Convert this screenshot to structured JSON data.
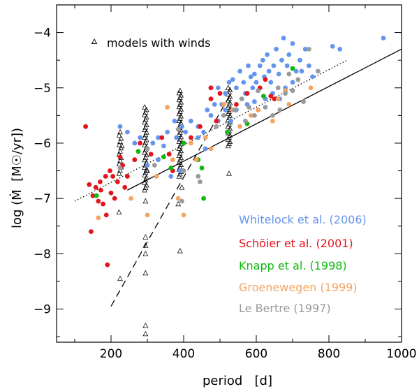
{
  "chart_data": {
    "type": "scatter",
    "title": "",
    "xlabel": "period   [d]",
    "ylabel": "log (Ṁ  [M☉/yr])",
    "xlim": [
      50,
      1000
    ],
    "ylim": [
      -9.6,
      -3.5
    ],
    "x_ticks": [
      "200",
      "400",
      "600",
      "800",
      "1000"
    ],
    "y_ticks": [
      "−4",
      "−5",
      "−6",
      "−7",
      "−8",
      "−9"
    ],
    "grid": false,
    "legend_position": "top-left",
    "model_legend": "models with winds",
    "series": [
      {
        "name": "Whitelock et al. (2006)",
        "color": "#6495ed",
        "points": [
          [
            225,
            -5.7
          ],
          [
            245,
            -5.8
          ],
          [
            265,
            -6.0
          ],
          [
            280,
            -5.9
          ],
          [
            300,
            -6.1
          ],
          [
            315,
            -6.0
          ],
          [
            330,
            -5.9
          ],
          [
            345,
            -6.05
          ],
          [
            355,
            -5.8
          ],
          [
            365,
            -6.6
          ],
          [
            375,
            -5.6
          ],
          [
            380,
            -5.9
          ],
          [
            395,
            -5.7
          ],
          [
            405,
            -5.8
          ],
          [
            420,
            -5.6
          ],
          [
            440,
            -5.7
          ],
          [
            455,
            -5.8
          ],
          [
            465,
            -5.4
          ],
          [
            475,
            -5.5
          ],
          [
            485,
            -5.3
          ],
          [
            495,
            -5.0
          ],
          [
            505,
            -5.3
          ],
          [
            515,
            -5.1
          ],
          [
            525,
            -4.9
          ],
          [
            530,
            -5.6
          ],
          [
            535,
            -4.85
          ],
          [
            545,
            -5.0
          ],
          [
            555,
            -4.7
          ],
          [
            560,
            -5.2
          ],
          [
            565,
            -4.9
          ],
          [
            570,
            -5.1
          ],
          [
            578,
            -4.6
          ],
          [
            585,
            -4.8
          ],
          [
            590,
            -5.0
          ],
          [
            595,
            -4.75
          ],
          [
            600,
            -4.9
          ],
          [
            605,
            -5.05
          ],
          [
            610,
            -4.6
          ],
          [
            618,
            -4.5
          ],
          [
            622,
            -4.8
          ],
          [
            630,
            -4.4
          ],
          [
            635,
            -4.7
          ],
          [
            640,
            -4.9
          ],
          [
            648,
            -4.6
          ],
          [
            655,
            -4.3
          ],
          [
            662,
            -4.75
          ],
          [
            670,
            -4.5
          ],
          [
            675,
            -4.1
          ],
          [
            685,
            -4.6
          ],
          [
            690,
            -4.4
          ],
          [
            700,
            -4.2
          ],
          [
            710,
            -4.7
          ],
          [
            720,
            -4.5
          ],
          [
            735,
            -4.3
          ],
          [
            745,
            -4.6
          ],
          [
            755,
            -4.8
          ],
          [
            810,
            -4.25
          ],
          [
            830,
            -4.3
          ],
          [
            950,
            -4.1
          ],
          [
            475,
            -5.0
          ],
          [
            515,
            -5.4
          ],
          [
            545,
            -5.4
          ],
          [
            595,
            -5.25
          ],
          [
            625,
            -5.2
          ],
          [
            645,
            -5.1
          ],
          [
            680,
            -5.0
          ],
          [
            440,
            -5.9
          ],
          [
            460,
            -6.1
          ],
          [
            390,
            -6.5
          ],
          [
            300,
            -6.4
          ],
          [
            330,
            -6.3
          ],
          [
            575,
            -5.3
          ],
          [
            665,
            -5.2
          ],
          [
            700,
            -4.9
          ],
          [
            725,
            -4.7
          ],
          [
            495,
            -5.6
          ]
        ]
      },
      {
        "name": "Schöier et al. (2001)",
        "color": "#e4141b",
        "points": [
          [
            130,
            -5.7
          ],
          [
            140,
            -6.75
          ],
          [
            145,
            -7.6
          ],
          [
            150,
            -6.95
          ],
          [
            158,
            -6.8
          ],
          [
            165,
            -7.05
          ],
          [
            170,
            -6.7
          ],
          [
            172,
            -6.85
          ],
          [
            178,
            -7.1
          ],
          [
            185,
            -6.6
          ],
          [
            187,
            -7.3
          ],
          [
            190,
            -8.2
          ],
          [
            197,
            -6.5
          ],
          [
            200,
            -6.9
          ],
          [
            205,
            -6.6
          ],
          [
            210,
            -7.0
          ],
          [
            218,
            -6.7
          ],
          [
            225,
            -6.25
          ],
          [
            232,
            -6.4
          ],
          [
            238,
            -6.8
          ],
          [
            245,
            -6.6
          ],
          [
            265,
            -6.3
          ],
          [
            280,
            -6.0
          ],
          [
            310,
            -6.2
          ],
          [
            340,
            -5.9
          ],
          [
            360,
            -6.2
          ],
          [
            370,
            -6.5
          ],
          [
            400,
            -6.0
          ],
          [
            420,
            -5.9
          ],
          [
            445,
            -5.7
          ],
          [
            475,
            -5.2
          ],
          [
            490,
            -5.6
          ],
          [
            500,
            -5.1
          ],
          [
            545,
            -5.3
          ],
          [
            575,
            -5.1
          ],
          [
            610,
            -5.0
          ],
          [
            625,
            -4.85
          ],
          [
            640,
            -5.15
          ],
          [
            650,
            -5.2
          ],
          [
            475,
            -5.0
          ]
        ]
      },
      {
        "name": "Knapp et al. (1998)",
        "color": "#11b80f",
        "points": [
          [
            160,
            -6.95
          ],
          [
            275,
            -6.15
          ],
          [
            345,
            -6.25
          ],
          [
            365,
            -6.45
          ],
          [
            400,
            -6.0
          ],
          [
            440,
            -6.3
          ],
          [
            450,
            -6.45
          ],
          [
            455,
            -7.0
          ],
          [
            520,
            -5.8
          ],
          [
            575,
            -5.65
          ],
          [
            620,
            -5.15
          ],
          [
            700,
            -4.65
          ]
        ]
      },
      {
        "name": "Groenewegen (1999)",
        "color": "#f4a460",
        "points": [
          [
            165,
            -7.35
          ],
          [
            255,
            -7.0
          ],
          [
            300,
            -7.3
          ],
          [
            325,
            -6.6
          ],
          [
            355,
            -5.35
          ],
          [
            370,
            -6.3
          ],
          [
            385,
            -7.0
          ],
          [
            400,
            -7.3
          ],
          [
            420,
            -6.0
          ],
          [
            435,
            -6.3
          ],
          [
            460,
            -5.9
          ],
          [
            475,
            -6.1
          ],
          [
            510,
            -5.3
          ],
          [
            535,
            -5.4
          ],
          [
            555,
            -5.7
          ],
          [
            585,
            -5.5
          ],
          [
            605,
            -5.4
          ],
          [
            645,
            -5.6
          ],
          [
            660,
            -5.2
          ],
          [
            680,
            -5.05
          ],
          [
            690,
            -5.3
          ],
          [
            750,
            -5.0
          ]
        ]
      },
      {
        "name": "Le Bertre (1997)",
        "color": "#9a9a9a",
        "points": [
          [
            225,
            -6.45
          ],
          [
            300,
            -6.1
          ],
          [
            320,
            -6.4
          ],
          [
            385,
            -5.75
          ],
          [
            395,
            -7.05
          ],
          [
            400,
            -6.5
          ],
          [
            440,
            -6.6
          ],
          [
            445,
            -6.7
          ],
          [
            490,
            -5.7
          ],
          [
            510,
            -5.5
          ],
          [
            540,
            -5.4
          ],
          [
            560,
            -5.2
          ],
          [
            580,
            -5.35
          ],
          [
            595,
            -5.5
          ],
          [
            605,
            -5.05
          ],
          [
            625,
            -5.35
          ],
          [
            645,
            -5.5
          ],
          [
            665,
            -5.4
          ],
          [
            680,
            -5.1
          ],
          [
            690,
            -4.75
          ],
          [
            700,
            -5.05
          ],
          [
            715,
            -4.85
          ],
          [
            730,
            -5.25
          ],
          [
            745,
            -4.3
          ],
          [
            770,
            -4.7
          ],
          [
            570,
            -5.6
          ],
          [
            660,
            -5.0
          ]
        ]
      }
    ],
    "model_columns": [
      {
        "period": 225,
        "low": -6.55,
        "high": -5.8,
        "count": 14
      },
      {
        "period": 295,
        "low": -6.85,
        "high": -5.35,
        "count": 34
      },
      {
        "period": 390,
        "low": -6.6,
        "high": -5.05,
        "count": 38
      },
      {
        "period": 525,
        "low": -6.05,
        "high": -5.0,
        "count": 28
      }
    ],
    "model_extra": [
      [
        222,
        -7.25
      ],
      [
        225,
        -8.45
      ],
      [
        295,
        -7.7
      ],
      [
        295,
        -7.85
      ],
      [
        295,
        -8.0
      ],
      [
        295,
        -8.35
      ],
      [
        295,
        -9.3
      ],
      [
        295,
        -9.45
      ],
      [
        295,
        -7.05
      ],
      [
        385,
        -7.1
      ],
      [
        390,
        -7.95
      ],
      [
        395,
        -6.8
      ],
      [
        525,
        -6.55
      ],
      [
        230,
        -6.05
      ],
      [
        300,
        -6.5
      ]
    ],
    "lines": [
      {
        "name": "dotted fit",
        "style": "dotted",
        "points": [
          [
            100,
            -7.05
          ],
          [
            850,
            -4.5
          ]
        ]
      },
      {
        "name": "solid fit",
        "style": "solid",
        "points": [
          [
            245,
            -6.85
          ],
          [
            1000,
            -4.3
          ]
        ]
      },
      {
        "name": "dashed fit",
        "style": "dashed",
        "points": [
          [
            200,
            -8.95
          ],
          [
            530,
            -5.1
          ]
        ]
      }
    ]
  }
}
